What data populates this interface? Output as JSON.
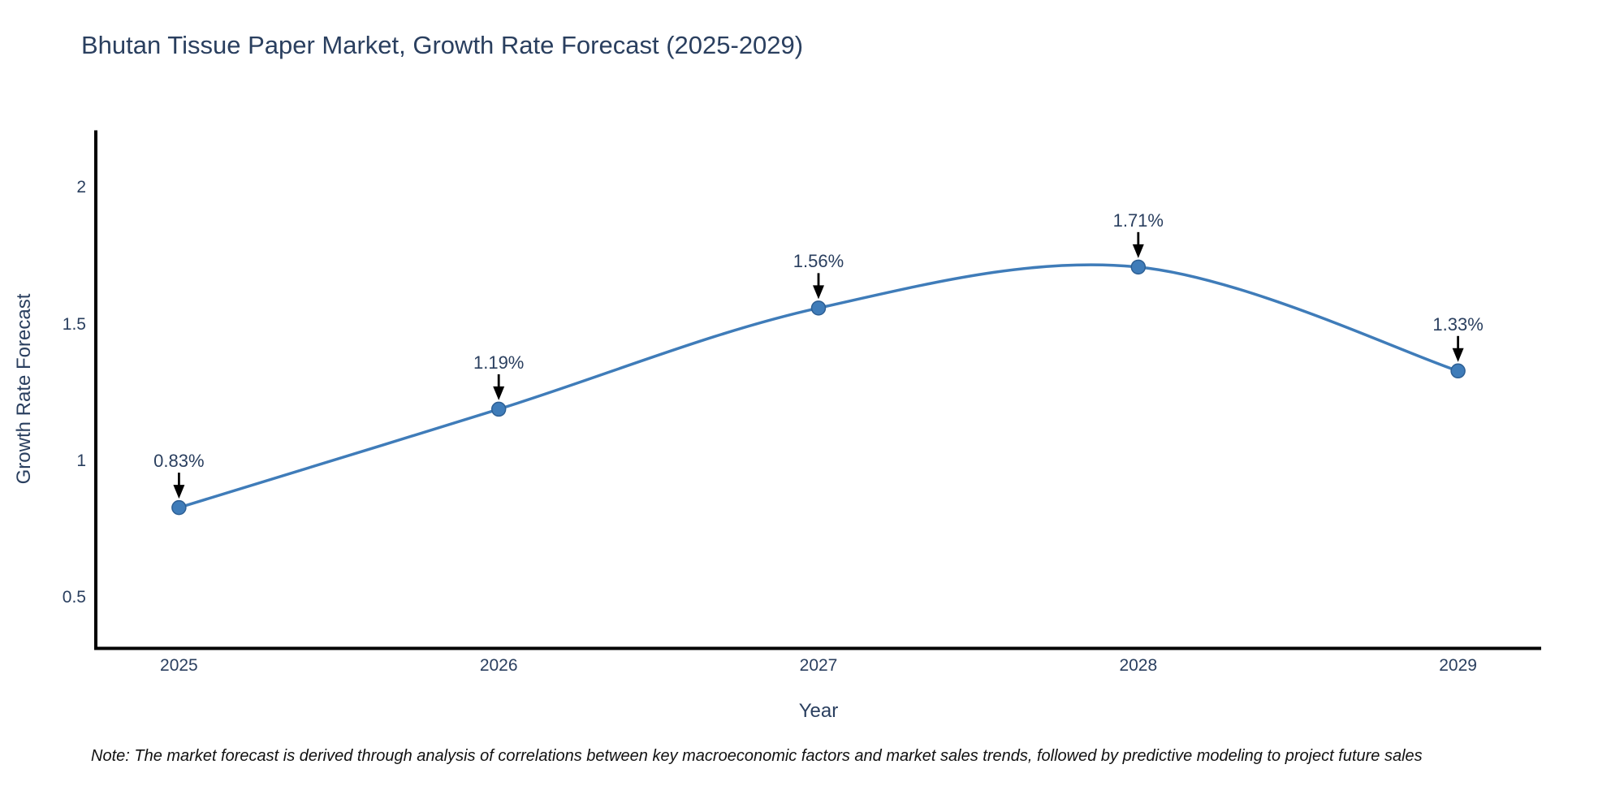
{
  "header": {
    "title": "Bhutan Tissue Paper Market, Growth Rate Forecast (2025-2029)"
  },
  "footnote": {
    "text": "Note: The market forecast is derived through analysis of correlations between key macroeconomic factors and market sales trends, followed by predictive modeling to project future sales"
  },
  "chart_data": {
    "type": "line",
    "title": "Bhutan Tissue Paper Market, Growth Rate Forecast (2025-2029)",
    "xlabel": "Year",
    "ylabel": "Growth Rate Forecast",
    "x": [
      2025,
      2026,
      2027,
      2028,
      2029
    ],
    "series": [
      {
        "name": "Growth Rate Forecast",
        "values": [
          0.83,
          1.19,
          1.56,
          1.71,
          1.33
        ]
      }
    ],
    "point_labels": [
      "0.83%",
      "1.19%",
      "1.56%",
      "1.71%",
      "1.33%"
    ],
    "line_shape": "spline",
    "marker": "circle",
    "xlim": [
      2024.74,
      2029.26
    ],
    "ylim": [
      0.315,
      2.21
    ],
    "xtick_values": [
      2025,
      2026,
      2027,
      2028,
      2029
    ],
    "xtick_labels": [
      "2025",
      "2026",
      "2027",
      "2028",
      "2029"
    ],
    "ytick_values": [
      0.5,
      1,
      1.5,
      2
    ],
    "ytick_labels": [
      "0.5",
      "1",
      "1.5",
      "2"
    ],
    "grid": false,
    "legend": "none",
    "annotations": "each data point labeled with its percentage value and a black down-arrow pointing at the marker",
    "colors": {
      "line": "#3f7cb9",
      "marker_fill": "#3f7cb9",
      "marker_edge": "#2d5f94",
      "arrow": "#000000",
      "axis_line": "#000000",
      "label_text": "#2a3f5f",
      "title_text": "#2a3f5f",
      "note_text": "#111111"
    }
  }
}
